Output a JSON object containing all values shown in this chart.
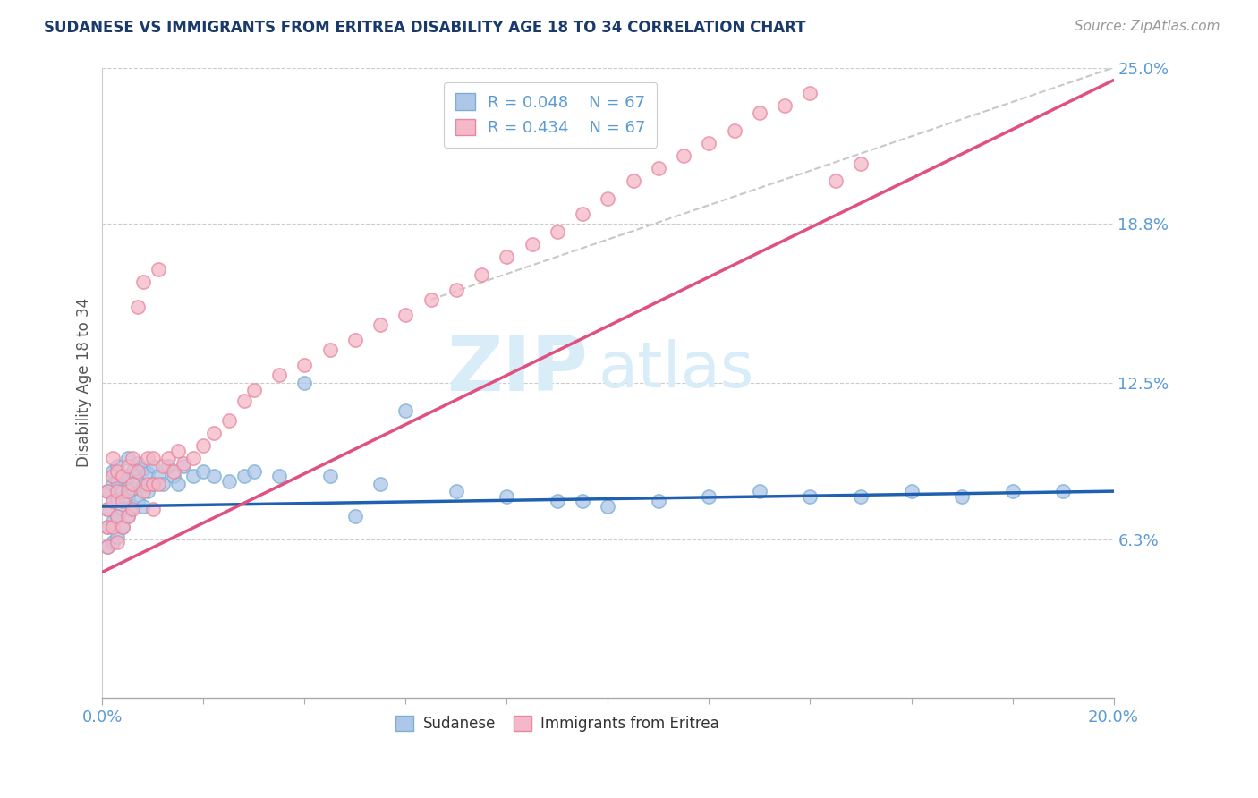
{
  "title": "SUDANESE VS IMMIGRANTS FROM ERITREA DISABILITY AGE 18 TO 34 CORRELATION CHART",
  "source_text": "Source: ZipAtlas.com",
  "ylabel": "Disability Age 18 to 34",
  "xlim": [
    0.0,
    0.2
  ],
  "ylim": [
    0.0,
    0.25
  ],
  "ytick_labels": [
    "6.3%",
    "12.5%",
    "18.8%",
    "25.0%"
  ],
  "ytick_values": [
    0.063,
    0.125,
    0.188,
    0.25
  ],
  "title_color": "#1a3a6b",
  "axis_color": "#5b9bd5",
  "legend_R1": "R = 0.048",
  "legend_N1": "N = 67",
  "legend_R2": "R = 0.434",
  "legend_N2": "N = 67",
  "blue_scatter_face": "#aec6e8",
  "blue_scatter_edge": "#7bafd4",
  "pink_scatter_face": "#f4b8c8",
  "pink_scatter_edge": "#e888a0",
  "blue_line_color": "#2060b0",
  "pink_line_color": "#e05080",
  "dashed_line_color": "#c8c8c8",
  "watermark_color": "#d8edf8",
  "blue_trendline": [
    0.0,
    0.076,
    0.2,
    0.082
  ],
  "pink_trendline": [
    0.0,
    0.05,
    0.2,
    0.245
  ],
  "dashed_line": [
    0.065,
    0.158,
    0.2,
    0.25
  ],
  "sudanese_x": [
    0.001,
    0.001,
    0.001,
    0.001,
    0.002,
    0.002,
    0.002,
    0.002,
    0.002,
    0.003,
    0.003,
    0.003,
    0.003,
    0.003,
    0.004,
    0.004,
    0.004,
    0.004,
    0.005,
    0.005,
    0.005,
    0.005,
    0.006,
    0.006,
    0.006,
    0.007,
    0.007,
    0.007,
    0.008,
    0.008,
    0.008,
    0.009,
    0.009,
    0.01,
    0.01,
    0.011,
    0.012,
    0.013,
    0.014,
    0.015,
    0.016,
    0.018,
    0.02,
    0.022,
    0.025,
    0.028,
    0.03,
    0.035,
    0.04,
    0.045,
    0.05,
    0.055,
    0.06,
    0.07,
    0.08,
    0.09,
    0.095,
    0.1,
    0.11,
    0.12,
    0.13,
    0.14,
    0.15,
    0.16,
    0.17,
    0.18,
    0.19
  ],
  "sudanese_y": [
    0.082,
    0.075,
    0.068,
    0.06,
    0.09,
    0.085,
    0.078,
    0.07,
    0.062,
    0.092,
    0.086,
    0.079,
    0.072,
    0.064,
    0.088,
    0.082,
    0.075,
    0.068,
    0.095,
    0.088,
    0.08,
    0.072,
    0.09,
    0.083,
    0.076,
    0.093,
    0.086,
    0.078,
    0.091,
    0.084,
    0.076,
    0.089,
    0.082,
    0.092,
    0.085,
    0.088,
    0.085,
    0.092,
    0.088,
    0.085,
    0.092,
    0.088,
    0.09,
    0.088,
    0.086,
    0.088,
    0.09,
    0.088,
    0.125,
    0.088,
    0.072,
    0.085,
    0.114,
    0.082,
    0.08,
    0.078,
    0.078,
    0.076,
    0.078,
    0.08,
    0.082,
    0.08,
    0.08,
    0.082,
    0.08,
    0.082,
    0.082
  ],
  "eritrea_x": [
    0.001,
    0.001,
    0.001,
    0.001,
    0.002,
    0.002,
    0.002,
    0.002,
    0.003,
    0.003,
    0.003,
    0.003,
    0.004,
    0.004,
    0.004,
    0.005,
    0.005,
    0.005,
    0.006,
    0.006,
    0.006,
    0.007,
    0.007,
    0.008,
    0.008,
    0.009,
    0.009,
    0.01,
    0.01,
    0.01,
    0.011,
    0.011,
    0.012,
    0.013,
    0.014,
    0.015,
    0.016,
    0.018,
    0.02,
    0.022,
    0.025,
    0.028,
    0.03,
    0.035,
    0.04,
    0.045,
    0.05,
    0.055,
    0.06,
    0.065,
    0.07,
    0.075,
    0.08,
    0.085,
    0.09,
    0.095,
    0.1,
    0.105,
    0.11,
    0.115,
    0.12,
    0.125,
    0.13,
    0.135,
    0.14,
    0.145,
    0.15
  ],
  "eritrea_y": [
    0.082,
    0.075,
    0.068,
    0.06,
    0.095,
    0.088,
    0.078,
    0.068,
    0.09,
    0.082,
    0.072,
    0.062,
    0.088,
    0.078,
    0.068,
    0.092,
    0.082,
    0.072,
    0.095,
    0.085,
    0.075,
    0.155,
    0.09,
    0.165,
    0.082,
    0.095,
    0.085,
    0.095,
    0.085,
    0.075,
    0.17,
    0.085,
    0.092,
    0.095,
    0.09,
    0.098,
    0.093,
    0.095,
    0.1,
    0.105,
    0.11,
    0.118,
    0.122,
    0.128,
    0.132,
    0.138,
    0.142,
    0.148,
    0.152,
    0.158,
    0.162,
    0.168,
    0.175,
    0.18,
    0.185,
    0.192,
    0.198,
    0.205,
    0.21,
    0.215,
    0.22,
    0.225,
    0.232,
    0.235,
    0.24,
    0.205,
    0.212
  ]
}
